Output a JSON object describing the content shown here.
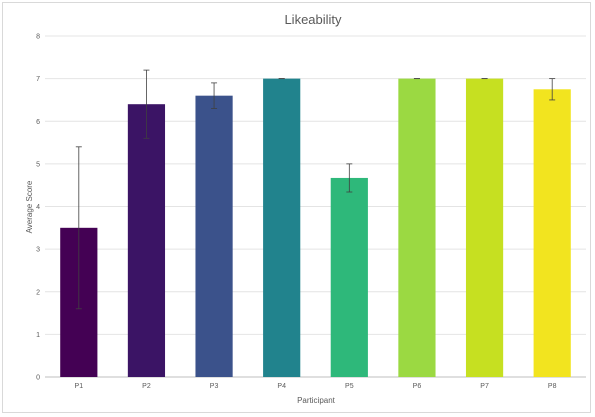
{
  "chart_data": {
    "type": "bar",
    "title": "Likeability",
    "xlabel": "Participant",
    "ylabel": "Average Score",
    "ylim": [
      0,
      8
    ],
    "yticks": [
      0,
      1,
      2,
      3,
      4,
      5,
      6,
      7,
      8
    ],
    "grid": true,
    "categories": [
      "P1",
      "P2",
      "P3",
      "P4",
      "P5",
      "P6",
      "P7",
      "P8"
    ],
    "values": [
      3.5,
      6.4,
      6.6,
      7.0,
      4.67,
      7.0,
      7.0,
      6.75
    ],
    "error": [
      1.9,
      0.8,
      0.3,
      0.0,
      0.33,
      0.0,
      0.0,
      0.25
    ],
    "colors": [
      "#440154",
      "#3b1465",
      "#3b528b",
      "#21838d",
      "#2eb87a",
      "#9bd942",
      "#c6e021",
      "#f2e41f"
    ]
  }
}
